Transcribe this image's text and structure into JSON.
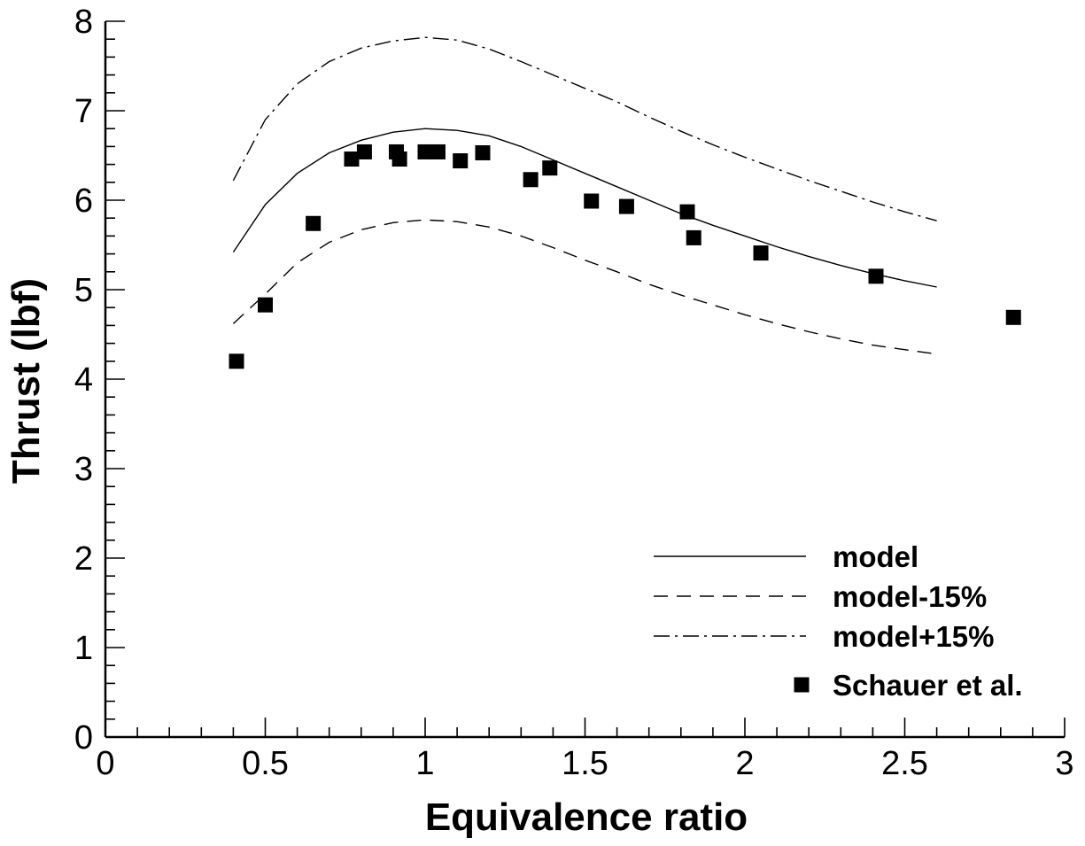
{
  "chart_data": {
    "type": "line",
    "xlabel": "Equivalence ratio",
    "ylabel": "Thrust (lbf)",
    "xlim": [
      0,
      3
    ],
    "ylim": [
      0,
      8
    ],
    "x_ticks": [
      "0",
      "0.5",
      "1",
      "1.5",
      "2",
      "2.5",
      "3"
    ],
    "y_ticks": [
      "0",
      "1",
      "2",
      "3",
      "4",
      "5",
      "6",
      "7",
      "8"
    ],
    "grid": false,
    "legend_position": "bottom-right",
    "series": [
      {
        "name": "model",
        "style": "solid",
        "x": [
          0.4,
          0.5,
          0.6,
          0.7,
          0.8,
          0.9,
          1.0,
          1.1,
          1.2,
          1.3,
          1.4,
          1.5,
          1.6,
          1.7,
          1.8,
          1.9,
          2.0,
          2.1,
          2.2,
          2.3,
          2.4,
          2.5,
          2.6
        ],
        "y": [
          5.42,
          5.95,
          6.3,
          6.53,
          6.67,
          6.76,
          6.8,
          6.78,
          6.72,
          6.6,
          6.45,
          6.3,
          6.15,
          6.0,
          5.85,
          5.72,
          5.6,
          5.48,
          5.37,
          5.27,
          5.18,
          5.1,
          5.03
        ]
      },
      {
        "name": "model-15%",
        "style": "dashed",
        "x": [
          0.4,
          0.5,
          0.6,
          0.7,
          0.8,
          0.9,
          1.0,
          1.1,
          1.2,
          1.3,
          1.4,
          1.5,
          1.6,
          1.7,
          1.8,
          1.9,
          2.0,
          2.1,
          2.2,
          2.3,
          2.4,
          2.5,
          2.6
        ],
        "y": [
          4.62,
          4.95,
          5.3,
          5.53,
          5.67,
          5.75,
          5.78,
          5.76,
          5.7,
          5.6,
          5.47,
          5.33,
          5.2,
          5.06,
          4.94,
          4.83,
          4.72,
          4.62,
          4.53,
          4.45,
          4.38,
          4.33,
          4.28
        ]
      },
      {
        "name": "model+15%",
        "style": "dashdot",
        "x": [
          0.4,
          0.5,
          0.6,
          0.7,
          0.8,
          0.9,
          1.0,
          1.1,
          1.2,
          1.3,
          1.4,
          1.5,
          1.6,
          1.7,
          1.8,
          1.9,
          2.0,
          2.1,
          2.2,
          2.3,
          2.4,
          2.5,
          2.6
        ],
        "y": [
          6.22,
          6.9,
          7.3,
          7.55,
          7.7,
          7.78,
          7.82,
          7.79,
          7.69,
          7.55,
          7.4,
          7.25,
          7.1,
          6.93,
          6.77,
          6.62,
          6.48,
          6.35,
          6.22,
          6.1,
          5.98,
          5.87,
          5.77
        ]
      },
      {
        "name": "Schauer et al.",
        "style": "markers",
        "x": [
          0.41,
          0.5,
          0.65,
          0.77,
          0.81,
          0.91,
          0.92,
          1.0,
          1.04,
          1.11,
          1.18,
          1.33,
          1.39,
          1.52,
          1.63,
          1.82,
          1.84,
          2.05,
          2.41,
          2.84
        ],
        "y": [
          4.2,
          4.83,
          5.74,
          6.46,
          6.54,
          6.54,
          6.46,
          6.54,
          6.54,
          6.44,
          6.53,
          6.23,
          6.36,
          5.99,
          5.93,
          5.87,
          5.58,
          5.41,
          5.15,
          4.69
        ]
      }
    ]
  }
}
